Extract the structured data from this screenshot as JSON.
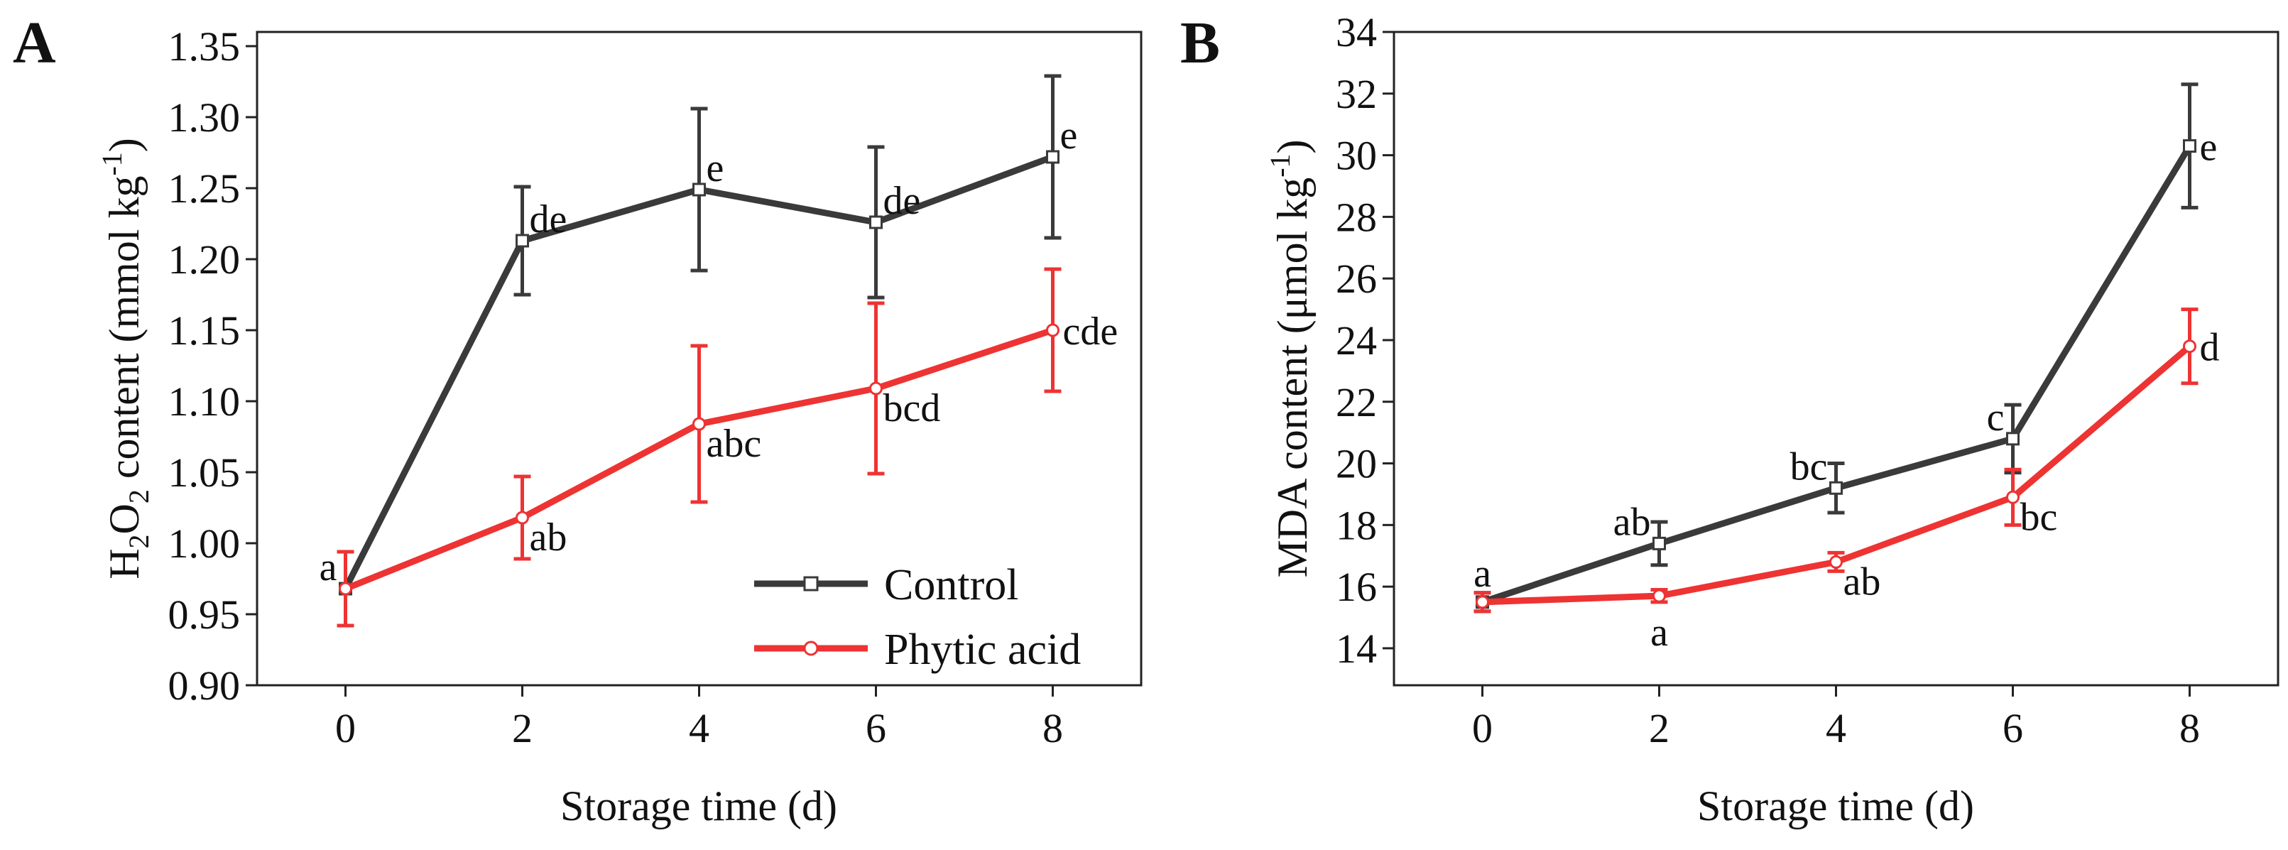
{
  "chart_data": [
    {
      "panel": "A",
      "type": "line",
      "xlabel": "Storage time (d)",
      "ylabel": {
        "pre": "H",
        "sub1": "2",
        "mid": "O",
        "sub2": "2",
        "post": " content (mmol kg",
        "sup": "-1",
        "end": ")"
      },
      "x": [
        0,
        2,
        4,
        6,
        8
      ],
      "xlim": [
        -1,
        9
      ],
      "ylim": [
        0.9,
        1.36
      ],
      "xticks": [
        0,
        2,
        4,
        6,
        8
      ],
      "yticks": [
        0.9,
        0.95,
        1.0,
        1.05,
        1.1,
        1.15,
        1.2,
        1.25,
        1.3,
        1.35
      ],
      "ytick_decimals": 2,
      "legend": {
        "position": "bottom-right"
      },
      "series": [
        {
          "name": "Control",
          "color": "#3a3a3a",
          "marker": "square",
          "values": [
            0.968,
            1.213,
            1.249,
            1.226,
            1.272
          ],
          "errors": [
            0.026,
            0.038,
            0.057,
            0.053,
            0.057
          ],
          "labels": [
            "",
            "de",
            "e",
            "de",
            "e"
          ],
          "label_pos": [
            "",
            "right-top",
            "right-top",
            "right-top",
            "right-top"
          ]
        },
        {
          "name": "Phytic acid",
          "color": "#ee3333",
          "marker": "circle",
          "values": [
            0.968,
            1.018,
            1.084,
            1.109,
            1.15
          ],
          "errors": [
            0.026,
            0.029,
            0.055,
            0.06,
            0.043
          ],
          "labels": [
            "a",
            "ab",
            "abc",
            "bcd",
            "cde"
          ],
          "label_pos": [
            "left-top",
            "right-bottom",
            "right-bottom",
            "right-bottom",
            "right"
          ]
        }
      ]
    },
    {
      "panel": "B",
      "type": "line",
      "xlabel": "Storage time (d)",
      "ylabel": {
        "pre": "MDA content (μmol kg",
        "sup": "-1",
        "end": ")"
      },
      "x": [
        0,
        2,
        4,
        6,
        8
      ],
      "xlim": [
        -1,
        9
      ],
      "ylim": [
        12.8,
        34
      ],
      "xticks": [
        0,
        2,
        4,
        6,
        8
      ],
      "yticks": [
        14,
        16,
        18,
        20,
        22,
        24,
        26,
        28,
        30,
        32,
        34
      ],
      "ytick_decimals": 0,
      "series": [
        {
          "name": "Control",
          "color": "#3a3a3a",
          "marker": "square",
          "values": [
            15.5,
            17.4,
            19.2,
            20.8,
            30.3
          ],
          "errors": [
            0.3,
            0.7,
            0.8,
            1.1,
            2.0
          ],
          "labels": [
            "a",
            "ab",
            "bc",
            "c",
            "e"
          ],
          "label_pos": [
            "above",
            "left-top",
            "left-top",
            "left-top",
            "right"
          ]
        },
        {
          "name": "Phytic acid",
          "color": "#ee3333",
          "marker": "circle",
          "values": [
            15.5,
            15.7,
            16.8,
            18.9,
            23.8
          ],
          "errors": [
            0.3,
            0.2,
            0.3,
            0.9,
            1.2
          ],
          "labels": [
            "",
            "a",
            "ab",
            "bc",
            "d"
          ],
          "label_pos": [
            "",
            "below",
            "right-bottom",
            "right-bottom",
            "right"
          ]
        }
      ]
    }
  ]
}
